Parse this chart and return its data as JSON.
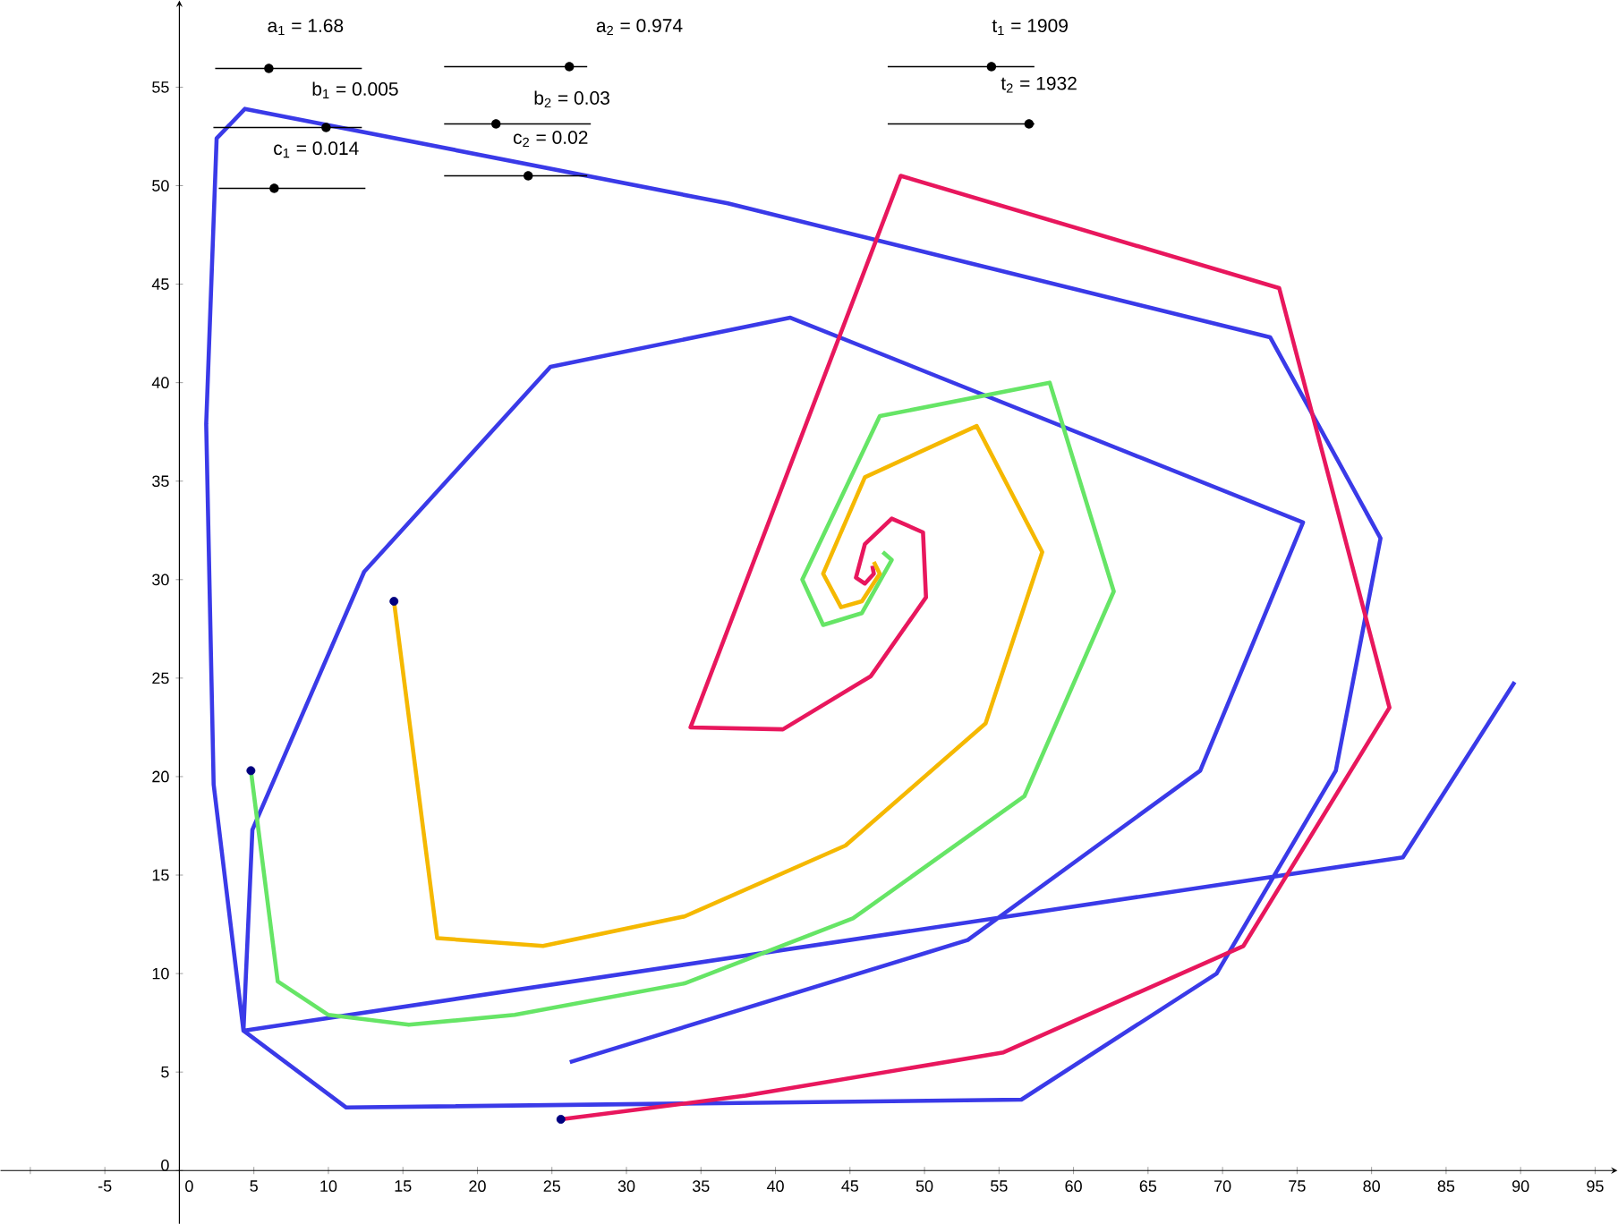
{
  "chart_data": {
    "type": "line",
    "xlim": [
      -12,
      96.5
    ],
    "ylim": [
      -2.7,
      59.4
    ],
    "xticks": [
      {
        "value": -10,
        "label": null
      },
      -5,
      0,
      5,
      10,
      15,
      20,
      25,
      30,
      35,
      40,
      45,
      50,
      55,
      60,
      65,
      70,
      75,
      80,
      85,
      90,
      95
    ],
    "yticks": [
      0,
      5,
      10,
      15,
      20,
      25,
      30,
      35,
      40,
      45,
      50,
      55
    ],
    "annotations": [
      "a$_{1}$ = 1.68",
      "a$_{2}$ = 0.974",
      "t$_{1}$ = 1909",
      "b$_{1}$ = 0.005",
      "b$_{2}$ = 0.03",
      "t$_{2}$ = 1932",
      "c$_{1}$ = 0.014",
      "c$_{2}$ = 0.02"
    ],
    "series": [
      {
        "color": "#3a3ae8",
        "x": [
          26.2,
          52.9,
          68.5,
          75.4,
          41.0,
          24.9,
          12.4,
          4.9,
          4.3,
          11.2,
          56.5,
          69.6,
          77.6,
          80.6,
          73.2,
          36.8,
          4.4,
          2.5,
          1.8,
          2.3,
          4.3,
          82.1,
          89.6
        ],
        "values": [
          5.5,
          11.7,
          20.3,
          32.9,
          43.3,
          40.8,
          30.4,
          17.3,
          7.1,
          3.2,
          3.6,
          10.0,
          20.3,
          32.1,
          42.3,
          49.1,
          53.9,
          52.4,
          37.9,
          19.6,
          7.1,
          15.9,
          24.8
        ]
      },
      {
        "color": "#e8175d",
        "x": [
          25.6,
          38.0,
          55.3,
          71.4,
          81.2,
          73.8,
          48.4,
          34.3,
          40.5,
          46.4,
          50.1,
          49.9,
          47.8,
          46.0,
          45.4,
          46.0,
          46.6,
          46.5
        ],
        "values": [
          2.6,
          3.8,
          6.0,
          11.4,
          23.5,
          44.8,
          50.5,
          22.5,
          22.4,
          25.1,
          29.1,
          32.4,
          33.1,
          31.8,
          30.1,
          29.8,
          30.3,
          30.7
        ]
      },
      {
        "color": "#66e566",
        "x": [
          4.8,
          6.6,
          10.0,
          15.4,
          22.5,
          33.9,
          45.2,
          56.7,
          62.7,
          58.4,
          47.0,
          41.8,
          43.2,
          45.8,
          47.8,
          47.2
        ],
        "values": [
          20.3,
          9.6,
          7.9,
          7.4,
          7.9,
          9.5,
          12.8,
          19.0,
          29.4,
          40.0,
          38.3,
          30.0,
          27.7,
          28.3,
          31.0,
          31.4
        ]
      },
      {
        "color": "#f5b800",
        "x": [
          14.4,
          17.3,
          24.4,
          33.9,
          44.7,
          54.1,
          57.9,
          53.5,
          46.0,
          43.2,
          44.4,
          45.8,
          47.0,
          46.6
        ],
        "values": [
          28.9,
          11.8,
          11.4,
          12.9,
          16.5,
          22.7,
          31.4,
          37.8,
          35.2,
          30.3,
          28.6,
          28.9,
          30.3,
          30.9
        ]
      },
      {
        "type": "scatter",
        "marker": "circle",
        "color": "#00007f",
        "x": [
          25.6,
          4.8,
          14.4
        ],
        "values": [
          2.6,
          20.3,
          28.9
        ]
      }
    ]
  }
}
